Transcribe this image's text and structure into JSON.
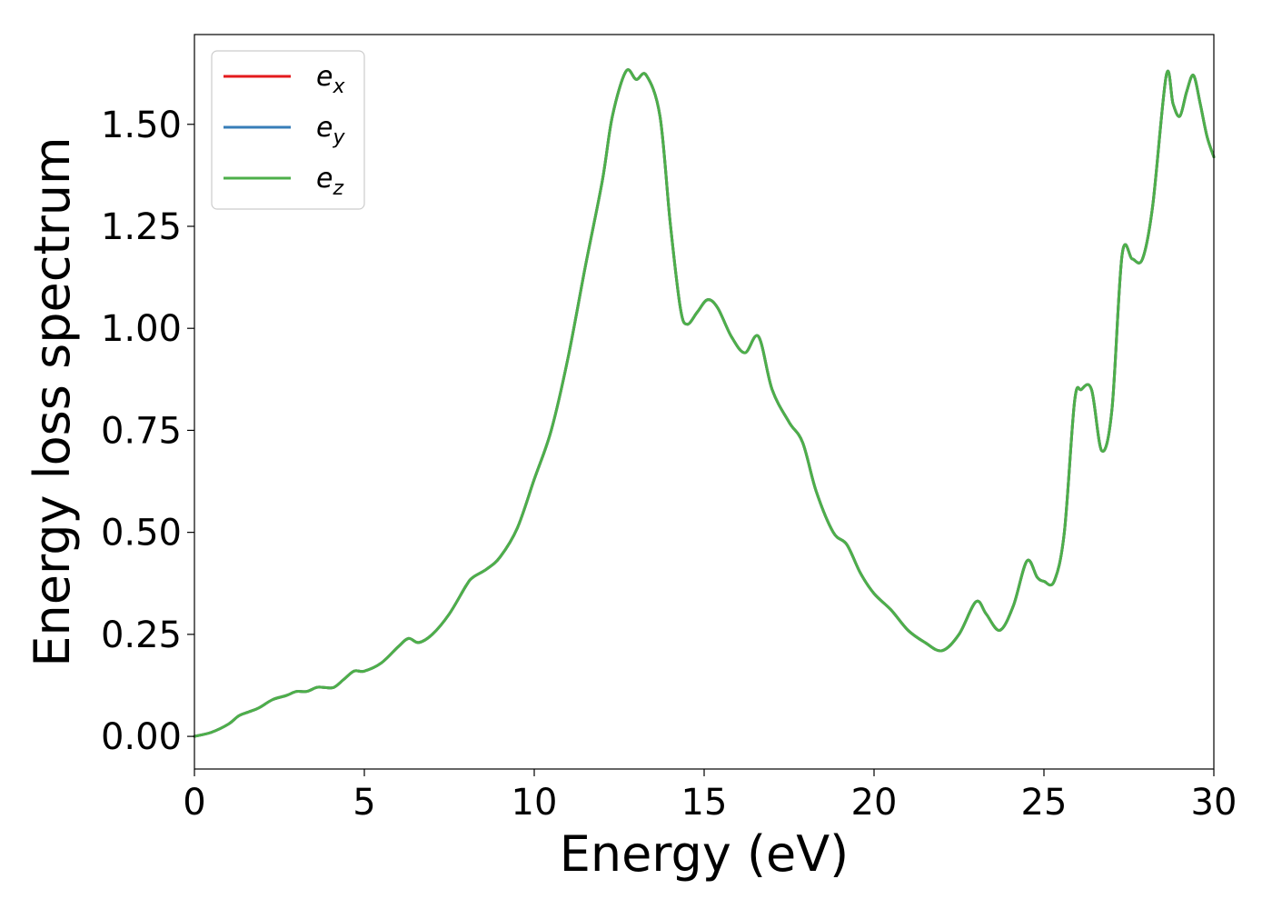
{
  "chart_data": {
    "type": "line",
    "xlabel": "Energy (eV)",
    "ylabel": "Energy loss spectrum",
    "xlim": [
      0,
      30
    ],
    "ylim": [
      -0.08,
      1.72
    ],
    "xticks": [
      0,
      5,
      10,
      15,
      20,
      25,
      30
    ],
    "xtick_labels": [
      "0",
      "5",
      "10",
      "15",
      "20",
      "25",
      "30"
    ],
    "yticks": [
      0,
      0.25,
      0.5,
      0.75,
      1.0,
      1.25,
      1.5
    ],
    "ytick_labels": [
      "0.00",
      "0.25",
      "0.50",
      "0.75",
      "1.00",
      "1.25",
      "1.50"
    ],
    "grid": false,
    "legend_position": "top-left",
    "x": [
      0,
      0.5,
      1.0,
      1.3,
      1.6,
      1.9,
      2.3,
      2.7,
      3.0,
      3.3,
      3.6,
      3.8,
      4.1,
      4.4,
      4.7,
      5.0,
      5.5,
      6.0,
      6.3,
      6.6,
      7.0,
      7.5,
      8.0,
      8.2,
      8.6,
      9.0,
      9.5,
      10.0,
      10.5,
      11.0,
      11.5,
      12.0,
      12.3,
      12.7,
      13.0,
      13.3,
      13.7,
      14.0,
      14.3,
      14.5,
      14.8,
      15.1,
      15.4,
      15.8,
      16.2,
      16.6,
      17.0,
      17.5,
      17.9,
      18.3,
      18.8,
      19.2,
      19.6,
      20.0,
      20.5,
      21.0,
      21.5,
      22.0,
      22.5,
      23.0,
      23.3,
      23.7,
      24.1,
      24.5,
      24.8,
      25.0,
      25.3,
      25.6,
      25.9,
      26.1,
      26.4,
      26.7,
      27.0,
      27.3,
      27.6,
      27.9,
      28.2,
      28.6,
      28.8,
      29.0,
      29.2,
      29.4,
      29.6,
      29.8,
      30.0
    ],
    "series": [
      {
        "name": "e_x",
        "label_base": "e",
        "label_sub": "x",
        "color": "#e41a1c",
        "values": [
          0.0,
          0.01,
          0.03,
          0.05,
          0.06,
          0.07,
          0.09,
          0.1,
          0.11,
          0.11,
          0.12,
          0.12,
          0.12,
          0.14,
          0.16,
          0.16,
          0.18,
          0.22,
          0.24,
          0.23,
          0.25,
          0.3,
          0.37,
          0.39,
          0.41,
          0.44,
          0.51,
          0.63,
          0.75,
          0.93,
          1.15,
          1.36,
          1.52,
          1.63,
          1.61,
          1.62,
          1.52,
          1.26,
          1.05,
          1.01,
          1.04,
          1.07,
          1.05,
          0.98,
          0.94,
          0.98,
          0.85,
          0.77,
          0.72,
          0.6,
          0.5,
          0.47,
          0.4,
          0.35,
          0.31,
          0.26,
          0.23,
          0.21,
          0.25,
          0.33,
          0.3,
          0.26,
          0.32,
          0.43,
          0.39,
          0.38,
          0.38,
          0.5,
          0.82,
          0.85,
          0.85,
          0.7,
          0.8,
          1.18,
          1.17,
          1.17,
          1.3,
          1.62,
          1.55,
          1.52,
          1.58,
          1.62,
          1.55,
          1.47,
          1.42
        ]
      },
      {
        "name": "e_y",
        "label_base": "e",
        "label_sub": "y",
        "color": "#377eb8",
        "values": [
          0.0,
          0.01,
          0.03,
          0.05,
          0.06,
          0.07,
          0.09,
          0.1,
          0.11,
          0.11,
          0.12,
          0.12,
          0.12,
          0.14,
          0.16,
          0.16,
          0.18,
          0.22,
          0.24,
          0.23,
          0.25,
          0.3,
          0.37,
          0.39,
          0.41,
          0.44,
          0.51,
          0.63,
          0.75,
          0.93,
          1.15,
          1.36,
          1.52,
          1.63,
          1.61,
          1.62,
          1.52,
          1.26,
          1.05,
          1.01,
          1.04,
          1.07,
          1.05,
          0.98,
          0.94,
          0.98,
          0.85,
          0.77,
          0.72,
          0.6,
          0.5,
          0.47,
          0.4,
          0.35,
          0.31,
          0.26,
          0.23,
          0.21,
          0.25,
          0.33,
          0.3,
          0.26,
          0.32,
          0.43,
          0.39,
          0.38,
          0.38,
          0.5,
          0.82,
          0.85,
          0.85,
          0.7,
          0.8,
          1.18,
          1.17,
          1.17,
          1.3,
          1.62,
          1.55,
          1.52,
          1.58,
          1.62,
          1.55,
          1.47,
          1.42
        ]
      },
      {
        "name": "e_z",
        "label_base": "e",
        "label_sub": "z",
        "color": "#4daf4a",
        "values": [
          0.0,
          0.01,
          0.03,
          0.05,
          0.06,
          0.07,
          0.09,
          0.1,
          0.11,
          0.11,
          0.12,
          0.12,
          0.12,
          0.14,
          0.16,
          0.16,
          0.18,
          0.22,
          0.24,
          0.23,
          0.25,
          0.3,
          0.37,
          0.39,
          0.41,
          0.44,
          0.51,
          0.63,
          0.75,
          0.93,
          1.15,
          1.36,
          1.52,
          1.63,
          1.61,
          1.62,
          1.52,
          1.26,
          1.05,
          1.01,
          1.04,
          1.07,
          1.05,
          0.98,
          0.94,
          0.98,
          0.85,
          0.77,
          0.72,
          0.6,
          0.5,
          0.47,
          0.4,
          0.35,
          0.31,
          0.26,
          0.23,
          0.21,
          0.25,
          0.33,
          0.3,
          0.26,
          0.32,
          0.43,
          0.39,
          0.38,
          0.38,
          0.5,
          0.82,
          0.85,
          0.85,
          0.7,
          0.8,
          1.18,
          1.17,
          1.17,
          1.3,
          1.62,
          1.55,
          1.52,
          1.58,
          1.62,
          1.55,
          1.47,
          1.42
        ]
      }
    ]
  }
}
